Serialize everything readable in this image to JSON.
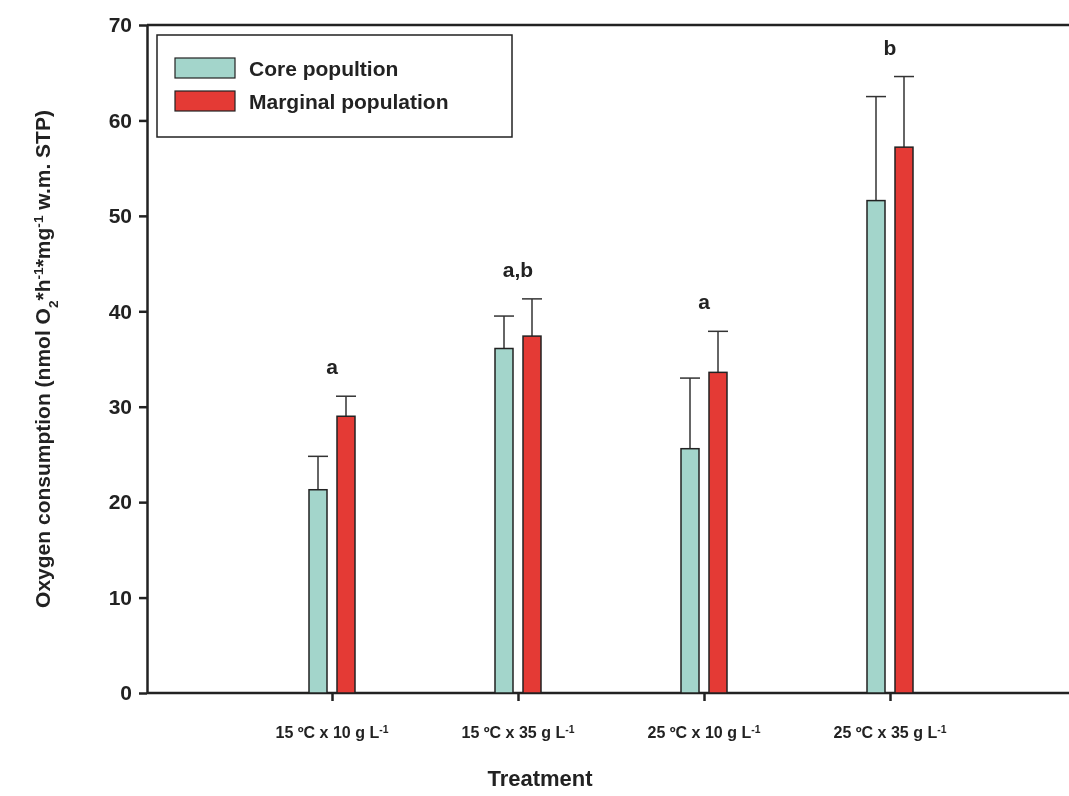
{
  "chart_data": {
    "type": "bar",
    "xlabel": "Treatment",
    "ylabel": "Oxygen consumption (nmol O$_{2}$*h$^{-1}$*mg$^{-1}$ w.m. STP)",
    "categories": [
      "15 ºC x 10 g L$^{-1}$",
      "15 ºC x 35 g L$^{-1}$",
      "25 ºC x 10 g L$^{-1}$",
      "25 ºC x 35 g L$^{-1}$"
    ],
    "series": [
      {
        "name": "Core popultion",
        "color": "#a3d5cb",
        "values": [
          21.3,
          36.1,
          25.6,
          51.6
        ],
        "errors": [
          [
            21.3,
            24.8
          ],
          [
            36.1,
            39.5
          ],
          [
            25.6,
            33.0
          ],
          [
            51.6,
            62.5
          ]
        ]
      },
      {
        "name": "Marginal population",
        "color": "#e43a35",
        "values": [
          29.0,
          37.4,
          33.6,
          57.2
        ],
        "errors": [
          [
            29.0,
            31.1
          ],
          [
            37.4,
            41.3
          ],
          [
            33.6,
            37.9
          ],
          [
            57.2,
            64.6
          ]
        ]
      }
    ],
    "ylim": [
      0,
      70
    ],
    "yticks": [
      0,
      10,
      20,
      30,
      40,
      50,
      60,
      70
    ],
    "grid": false,
    "legend": "top left",
    "annotations": [
      "a",
      "a,b",
      "a",
      "b"
    ]
  }
}
